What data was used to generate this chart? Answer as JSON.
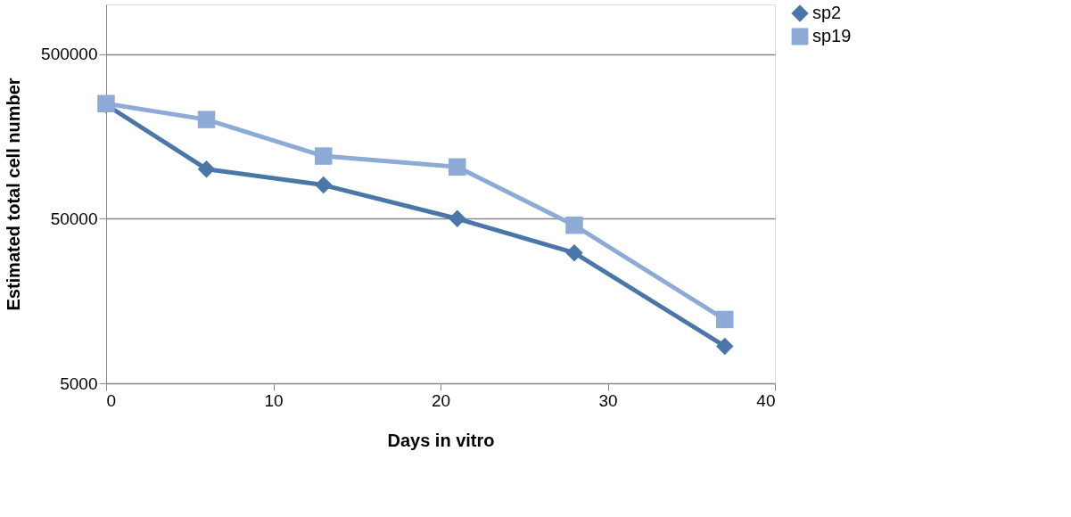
{
  "chart_data": {
    "type": "line",
    "xlabel": "Days in vitro",
    "ylabel": "Estimated total cell number",
    "x": [
      0,
      6,
      13,
      21,
      28,
      37
    ],
    "series": [
      {
        "name": "sp2",
        "color": "#4a76a8",
        "marker": "diamond",
        "values": [
          246000,
          100000,
          80000,
          50000,
          31000,
          8400
        ]
      },
      {
        "name": "sp19",
        "color": "#8eaad6",
        "marker": "square",
        "values": [
          250000,
          200000,
          120000,
          103000,
          45600,
          12200
        ]
      }
    ],
    "xlim": [
      0,
      40
    ],
    "xticks": [
      0,
      10,
      20,
      30,
      40
    ],
    "ylim": [
      5000,
      1000000
    ],
    "yticks": [
      5000,
      50000,
      500000
    ],
    "log": "y",
    "grid": "y",
    "legend": "right"
  }
}
